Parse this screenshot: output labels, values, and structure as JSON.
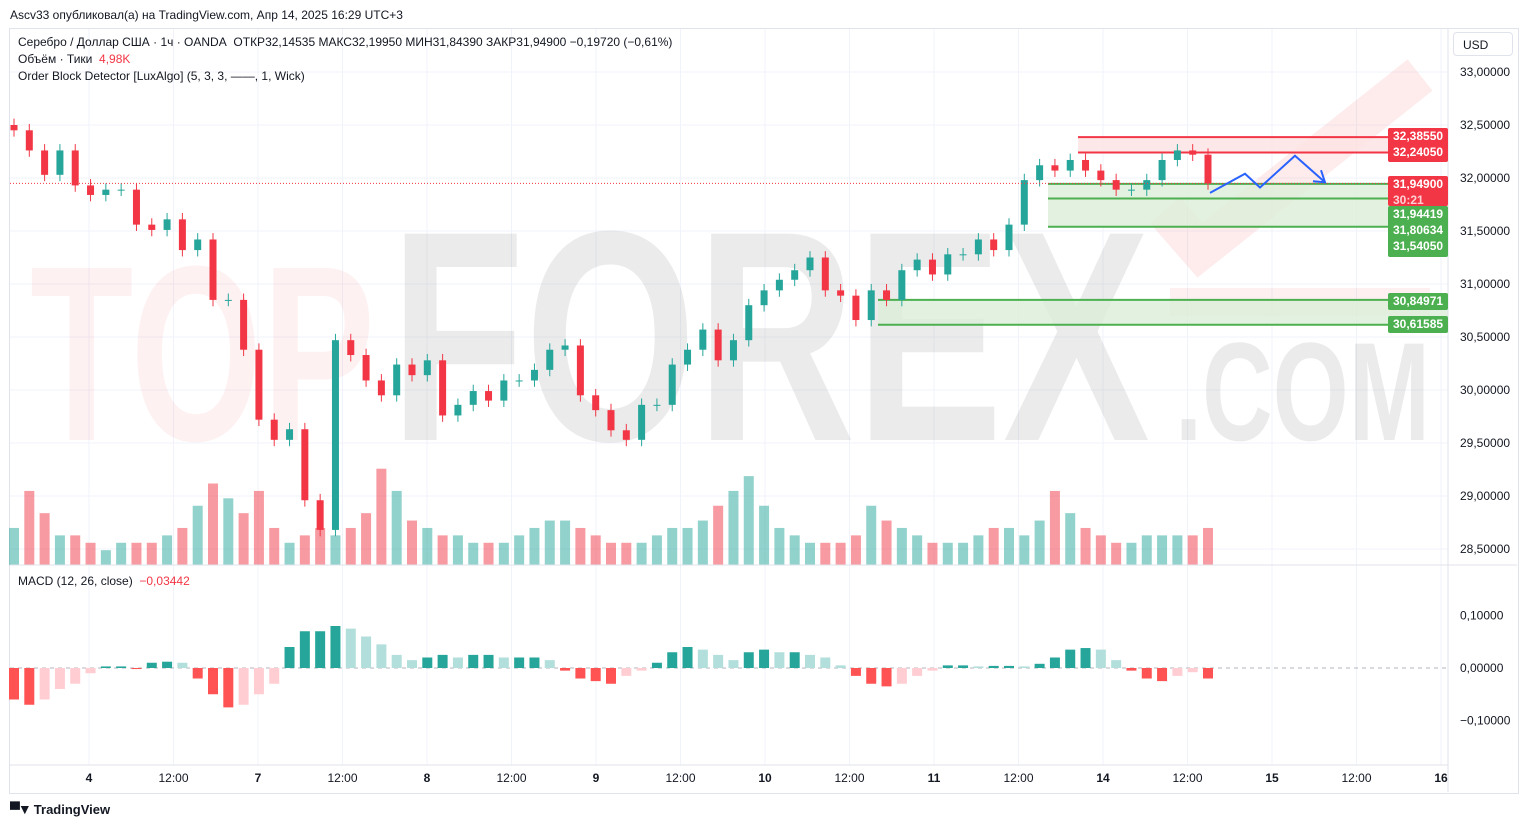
{
  "published": "Ascv33 опубликовал(а) на TradingView.com, Апр 14, 2025 16:29 UTC+3",
  "legend": {
    "symbol": "Серебро / Доллар США · 1ч · OANDA",
    "ohlc": "ОТКР32,14535  МАКС32,19950  МИН31,84390  ЗАКР31,94900  −0,19720 (−0,61%)",
    "volume_label": "Объём · Тики",
    "volume_value": "4,98K",
    "indicator": "Order Block Detector [LuxAlgo] (5, 3, 3, ——, 1, Wick)",
    "macd_label": "MACD (12, 26, close)",
    "macd_value": "−0,03442"
  },
  "currency_button": "USD",
  "branding": "TradingView",
  "watermark": {
    "part1": "TOP",
    "part2": "FOREX",
    "part3": ".COM"
  },
  "colors": {
    "up": "#26a69a",
    "down": "#f23645",
    "ob_bear": "#f23645",
    "ob_bull": "#4caf50",
    "projection": "#2962ff",
    "macd_up_strong": "#26a69a",
    "macd_up_weak": "#b2dfdb",
    "macd_down_strong": "#ff5252",
    "macd_down_weak": "#ffcdd2"
  },
  "chart_data": {
    "type": "candlestick",
    "price_axis": {
      "ticks": [
        "33,00000",
        "32,50000",
        "32,00000",
        "31,50000",
        "31,00000",
        "30,50000",
        "30,00000",
        "29,50000",
        "29,00000",
        "28,50000"
      ],
      "tick_values": [
        33,
        32.5,
        32,
        31.5,
        31,
        30.5,
        30,
        29.5,
        29,
        28.5
      ],
      "range": [
        28.3,
        33.5
      ]
    },
    "time_axis": [
      "4",
      "12:00",
      "7",
      "12:00",
      "8",
      "12:00",
      "9",
      "12:00",
      "10",
      "12:00",
      "11",
      "12:00",
      "14",
      "12:00",
      "15",
      "12:00",
      "16"
    ],
    "closes": [
      32.45,
      32.26,
      32.03,
      32.26,
      31.93,
      31.84,
      31.89,
      31.89,
      31.56,
      31.51,
      31.61,
      31.32,
      31.42,
      30.85,
      30.85,
      30.38,
      29.72,
      29.53,
      29.63,
      28.96,
      28.68,
      30.47,
      30.33,
      30.09,
      29.95,
      30.24,
      30.14,
      30.28,
      29.76,
      29.86,
      29.99,
      29.9,
      30.09,
      30.09,
      30.19,
      30.38,
      30.42,
      29.95,
      29.81,
      29.62,
      29.53,
      29.86,
      29.86,
      30.24,
      30.38,
      30.57,
      30.28,
      30.47,
      30.8,
      30.94,
      31.04,
      31.13,
      31.25,
      30.94,
      30.89,
      30.66,
      30.94,
      30.85,
      31.13,
      31.23,
      31.09,
      31.28,
      31.28,
      31.42,
      31.32,
      31.56,
      31.98,
      32.12,
      32.07,
      32.17,
      32.07,
      31.98,
      31.89,
      31.89,
      31.98,
      32.17,
      32.26,
      32.22,
      31.949
    ],
    "volume_k": [
      5,
      10,
      7,
      4,
      4,
      3,
      2,
      3,
      3,
      3,
      4,
      5,
      8,
      11,
      9,
      7,
      10,
      5,
      3,
      4,
      5,
      4,
      5,
      7,
      13,
      10,
      6,
      5,
      4,
      4,
      3,
      3,
      3,
      4,
      5,
      6,
      6,
      5,
      4,
      3,
      3,
      3,
      4,
      5,
      5,
      6,
      8,
      10,
      12,
      8,
      5,
      4,
      3,
      3,
      3,
      4,
      8,
      6,
      5,
      4,
      3,
      3,
      3,
      4,
      5,
      5,
      4,
      6,
      10,
      7,
      5,
      4,
      3,
      3,
      4,
      4,
      4,
      4,
      5
    ],
    "macd_hist": [
      -0.06,
      -0.07,
      -0.06,
      -0.04,
      -0.03,
      -0.01,
      0.003,
      0.003,
      -0.002,
      0.01,
      0.012,
      0.01,
      -0.02,
      -0.05,
      -0.075,
      -0.07,
      -0.05,
      -0.03,
      0.04,
      0.07,
      0.07,
      0.08,
      0.075,
      0.06,
      0.045,
      0.025,
      0.015,
      0.02,
      0.025,
      0.02,
      0.025,
      0.025,
      0.02,
      0.02,
      0.02,
      0.015,
      -0.005,
      -0.02,
      -0.025,
      -0.03,
      -0.015,
      -0.005,
      0.01,
      0.03,
      0.04,
      0.035,
      0.025,
      0.015,
      0.03,
      0.035,
      0.03,
      0.03,
      0.025,
      0.02,
      0.005,
      -0.015,
      -0.03,
      -0.035,
      -0.03,
      -0.015,
      -0.005,
      0.005,
      0.005,
      0.003,
      0.004,
      0.004,
      0.003,
      0.008,
      0.02,
      0.035,
      0.038,
      0.035,
      0.015,
      -0.005,
      -0.02,
      -0.025,
      -0.015,
      -0.008,
      -0.02
    ],
    "macd_axis": {
      "ticks": [
        "0,10000",
        "0,00000",
        "−0,10000"
      ],
      "tick_values": [
        0.1,
        0,
        -0.1
      ]
    },
    "last_price": {
      "value": "31,94900",
      "countdown": "30:21"
    },
    "order_blocks": [
      {
        "kind": "bearish",
        "top": 32.3855,
        "bottom": 32.2405,
        "top_label": "32,38550",
        "bottom_label": "32,24050"
      },
      {
        "kind": "bullish",
        "top": 31.94419,
        "bottom": 31.5405,
        "mid": 31.80634,
        "top_label": "31,94419",
        "mid_label": "31,80634",
        "bottom_label": "31,54050"
      },
      {
        "kind": "bullish",
        "top": 30.84971,
        "bottom": 30.61585,
        "top_label": "30,84971",
        "bottom_label": "30,61585"
      }
    ],
    "projection_prices": [
      31.86,
      32.04,
      31.91,
      32.21,
      31.96
    ]
  }
}
